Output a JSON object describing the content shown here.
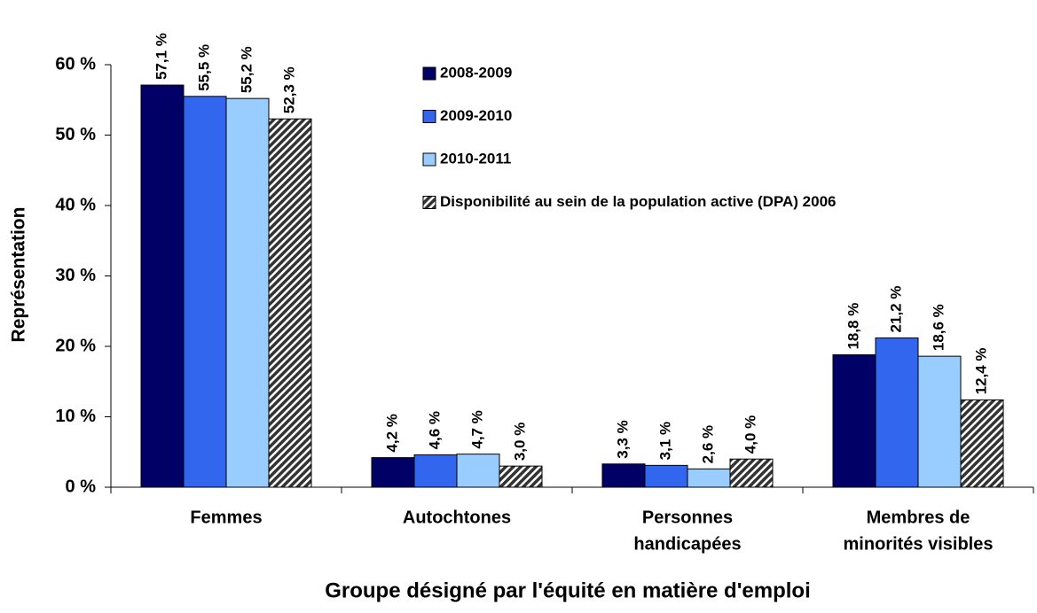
{
  "chart_data": {
    "type": "bar",
    "x_label": "Groupe désigné par l'équité en matière d'emploi",
    "y_label": "Représentation",
    "categories": [
      [
        "Femmes"
      ],
      [
        "Autochtones"
      ],
      [
        "Personnes",
        "handicapées"
      ],
      [
        "Membres de",
        "minorités visibles"
      ]
    ],
    "series": [
      {
        "name": "2008-2009",
        "color": "#000066",
        "values": [
          57.1,
          4.2,
          3.3,
          18.8
        ],
        "value_labels": [
          "57,1 %",
          "4,2 %",
          "3,3 %",
          "18,8 %"
        ]
      },
      {
        "name": "2009-2010",
        "color": "#3366ee",
        "values": [
          55.5,
          4.6,
          3.1,
          21.2
        ],
        "value_labels": [
          "55,5 %",
          "4,6 %",
          "3,1 %",
          "21,2 %"
        ]
      },
      {
        "name": "2010-2011",
        "color": "#99ccff",
        "values": [
          55.2,
          4.7,
          2.6,
          18.6
        ],
        "value_labels": [
          "55,2 %",
          "4,7 %",
          "2,6 %",
          "18,6 %"
        ]
      },
      {
        "name": "Disponibilité au sein de la population active (DPA) 2006",
        "color": "#333333",
        "hatch": true,
        "values": [
          52.3,
          3.0,
          4.0,
          12.4
        ],
        "value_labels": [
          "52,3 %",
          "3,0 %",
          "4,0 %",
          "12,4 %"
        ]
      }
    ],
    "ylim": [
      0,
      60
    ],
    "yticks": [
      {
        "value": 0,
        "label": "0 %"
      },
      {
        "value": 10,
        "label": "10 %"
      },
      {
        "value": 20,
        "label": "20 %"
      },
      {
        "value": 30,
        "label": "30 %"
      },
      {
        "value": 40,
        "label": "40 %"
      },
      {
        "value": 50,
        "label": "50 %"
      },
      {
        "value": 60,
        "label": "60 %"
      }
    ],
    "grid": false,
    "legend": "top-center"
  }
}
